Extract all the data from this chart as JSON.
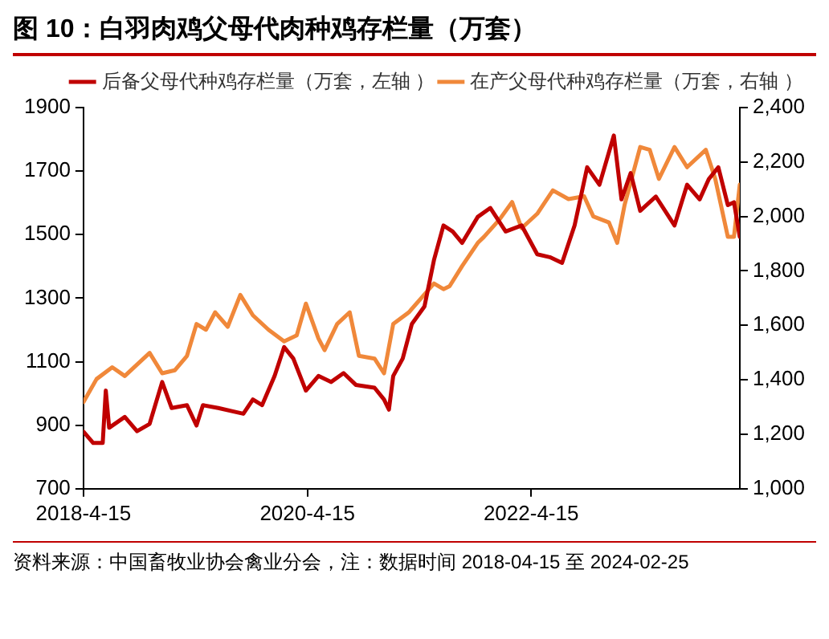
{
  "chart_data": {
    "type": "line",
    "title": "图 10：白羽肉鸡父母代肉种鸡存栏量（万套）",
    "xlim": [
      "2018-04-15",
      "2024-02-25"
    ],
    "xticks": [
      {
        "value": "2018-04-15",
        "label": "2018-4-15"
      },
      {
        "value": "2020-04-15",
        "label": "2020-4-15"
      },
      {
        "value": "2022-04-15",
        "label": "2022-4-15"
      }
    ],
    "ylim": [
      700,
      1900
    ],
    "yticks": [
      700,
      900,
      1100,
      1300,
      1500,
      1700,
      1900
    ],
    "y2lim": [
      1000,
      2400
    ],
    "y2ticks": [
      {
        "value": 1000,
        "label": "1,000"
      },
      {
        "value": 1200,
        "label": "1,200"
      },
      {
        "value": 1400,
        "label": "1,400"
      },
      {
        "value": 1600,
        "label": "1,600"
      },
      {
        "value": 1800,
        "label": "1,800"
      },
      {
        "value": 2000,
        "label": "2,000"
      },
      {
        "value": 2200,
        "label": "2,200"
      },
      {
        "value": 2400,
        "label": "2,400"
      }
    ],
    "grid": false,
    "legend": "top",
    "marker": "none",
    "line_style": "solid",
    "series": [
      {
        "name": "后备父母代种鸡存栏量（万套，左轴 ）",
        "color": "#c00000",
        "x": [
          "2018-04-15",
          "2018-05-17",
          "2018-06-17",
          "2018-06-27",
          "2018-07-08",
          "2018-08-28",
          "2018-10-07",
          "2018-11-17",
          "2018-12-28",
          "2019-01-28",
          "2019-03-19",
          "2019-04-19",
          "2019-05-10",
          "2019-06-29",
          "2019-09-19",
          "2019-10-20",
          "2019-11-19",
          "2019-12-30",
          "2020-01-30",
          "2020-02-29",
          "2020-04-10",
          "2020-05-21",
          "2020-07-01",
          "2020-08-11",
          "2020-09-20",
          "2020-11-20",
          "2020-12-21",
          "2021-01-06",
          "2021-01-20",
          "2021-02-20",
          "2021-03-22",
          "2021-05-02",
          "2021-06-02",
          "2021-07-03",
          "2021-08-02",
          "2021-09-02",
          "2021-10-23",
          "2021-12-03",
          "2022-01-22",
          "2022-03-15",
          "2022-05-05",
          "2022-06-15",
          "2022-07-25",
          "2022-09-04",
          "2022-10-15",
          "2022-11-24",
          "2023-01-10",
          "2023-02-04",
          "2023-03-06",
          "2023-04-06",
          "2023-05-27",
          "2023-07-27",
          "2023-09-06",
          "2023-10-17",
          "2023-11-16",
          "2023-12-17",
          "2024-01-17",
          "2024-02-06",
          "2024-02-25"
        ],
        "values": [
          880,
          844,
          844,
          1009,
          892,
          926,
          881,
          904,
          1036,
          954,
          963,
          899,
          963,
          954,
          936,
          981,
          963,
          1055,
          1146,
          1110,
          1009,
          1055,
          1036,
          1064,
          1027,
          1018,
          981,
          949,
          1055,
          1110,
          1219,
          1274,
          1420,
          1529,
          1510,
          1474,
          1556,
          1584,
          1510,
          1529,
          1438,
          1429,
          1411,
          1529,
          1712,
          1657,
          1812,
          1611,
          1694,
          1575,
          1620,
          1529,
          1657,
          1611,
          1675,
          1712,
          1593,
          1602,
          1493
        ]
      },
      {
        "name": "在产父母代种鸡存栏量（万套，右轴 ）",
        "color": "#f0883a",
        "axis": "y2",
        "x": [
          "2018-04-15",
          "2018-05-28",
          "2018-07-18",
          "2018-08-28",
          "2018-10-07",
          "2018-11-17",
          "2018-12-28",
          "2019-02-07",
          "2019-03-19",
          "2019-04-19",
          "2019-05-20",
          "2019-06-19",
          "2019-07-30",
          "2019-09-09",
          "2019-10-20",
          "2019-12-10",
          "2020-01-30",
          "2020-03-11",
          "2020-04-10",
          "2020-05-21",
          "2020-06-10",
          "2020-07-21",
          "2020-08-31",
          "2020-09-30",
          "2020-11-20",
          "2020-12-21",
          "2021-01-20",
          "2021-03-12",
          "2021-04-22",
          "2021-06-02",
          "2021-07-03",
          "2021-07-23",
          "2021-09-02",
          "2021-10-23",
          "2021-11-12",
          "2022-01-02",
          "2022-02-12",
          "2022-03-15",
          "2022-05-05",
          "2022-06-25",
          "2022-08-15",
          "2022-10-05",
          "2022-11-04",
          "2022-12-25",
          "2023-01-21",
          "2023-02-14",
          "2023-04-06",
          "2023-05-07",
          "2023-06-06",
          "2023-07-27",
          "2023-09-06",
          "2023-11-06",
          "2023-12-07",
          "2024-01-17",
          "2024-02-06",
          "2024-02-25"
        ],
        "values": [
          1318,
          1403,
          1446,
          1414,
          1456,
          1499,
          1424,
          1435,
          1488,
          1605,
          1584,
          1648,
          1595,
          1712,
          1637,
          1584,
          1541,
          1563,
          1680,
          1552,
          1509,
          1605,
          1648,
          1488,
          1478,
          1424,
          1605,
          1648,
          1701,
          1754,
          1733,
          1744,
          1818,
          1903,
          1925,
          1989,
          2053,
          1957,
          2010,
          2096,
          2064,
          2074,
          2000,
          1978,
          1903,
          2042,
          2255,
          2245,
          2138,
          2255,
          2181,
          2245,
          2138,
          1925,
          1925,
          2117
        ]
      }
    ],
    "annotations": [
      "资料来源：中国畜牧业协会禽业分会，注：数据时间 2018-04-15 至 2024-02-25"
    ]
  }
}
